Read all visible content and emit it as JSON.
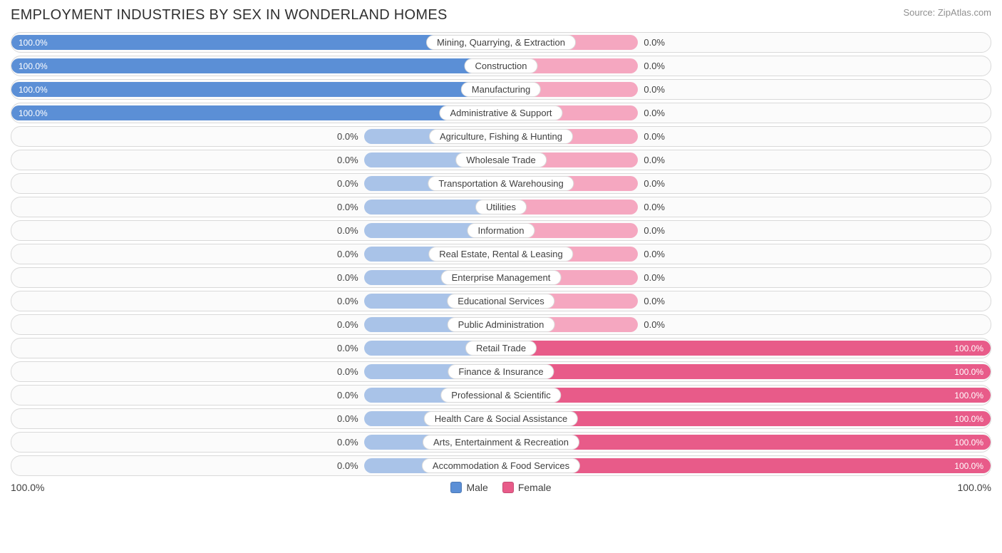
{
  "title": "EMPLOYMENT INDUSTRIES BY SEX IN WONDERLAND HOMES",
  "source": "Source: ZipAtlas.com",
  "colors": {
    "male_solid": "#5b8fd6",
    "male_hint": "#a9c3e8",
    "female_solid": "#e85b89",
    "female_hint": "#f5a7c0",
    "row_border": "#d9d9d9",
    "row_bg": "#fbfbfb",
    "text": "#404040",
    "text_light": "#ffffff"
  },
  "hint_width_pct": 28,
  "axis": {
    "left": "100.0%",
    "right": "100.0%"
  },
  "legend": {
    "male": "Male",
    "female": "Female"
  },
  "rows": [
    {
      "label": "Mining, Quarrying, & Extraction",
      "male": 100.0,
      "female": 0.0
    },
    {
      "label": "Construction",
      "male": 100.0,
      "female": 0.0
    },
    {
      "label": "Manufacturing",
      "male": 100.0,
      "female": 0.0
    },
    {
      "label": "Administrative & Support",
      "male": 100.0,
      "female": 0.0
    },
    {
      "label": "Agriculture, Fishing & Hunting",
      "male": 0.0,
      "female": 0.0
    },
    {
      "label": "Wholesale Trade",
      "male": 0.0,
      "female": 0.0
    },
    {
      "label": "Transportation & Warehousing",
      "male": 0.0,
      "female": 0.0
    },
    {
      "label": "Utilities",
      "male": 0.0,
      "female": 0.0
    },
    {
      "label": "Information",
      "male": 0.0,
      "female": 0.0
    },
    {
      "label": "Real Estate, Rental & Leasing",
      "male": 0.0,
      "female": 0.0
    },
    {
      "label": "Enterprise Management",
      "male": 0.0,
      "female": 0.0
    },
    {
      "label": "Educational Services",
      "male": 0.0,
      "female": 0.0
    },
    {
      "label": "Public Administration",
      "male": 0.0,
      "female": 0.0
    },
    {
      "label": "Retail Trade",
      "male": 0.0,
      "female": 100.0
    },
    {
      "label": "Finance & Insurance",
      "male": 0.0,
      "female": 100.0
    },
    {
      "label": "Professional & Scientific",
      "male": 0.0,
      "female": 100.0
    },
    {
      "label": "Health Care & Social Assistance",
      "male": 0.0,
      "female": 100.0
    },
    {
      "label": "Arts, Entertainment & Recreation",
      "male": 0.0,
      "female": 100.0
    },
    {
      "label": "Accommodation & Food Services",
      "male": 0.0,
      "female": 100.0
    }
  ]
}
